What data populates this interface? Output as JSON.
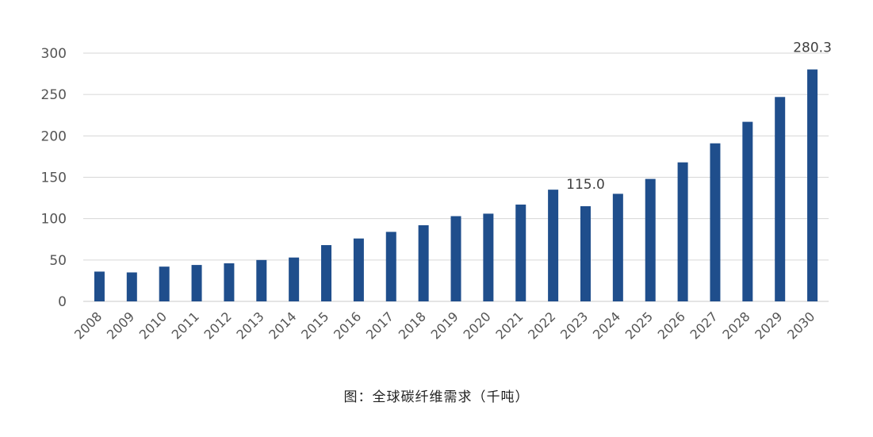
{
  "chart_data": {
    "type": "bar",
    "title": "",
    "xlabel": "",
    "ylabel": "",
    "categories": [
      "2008",
      "2009",
      "2010",
      "2011",
      "2012",
      "2013",
      "2014",
      "2015",
      "2016",
      "2017",
      "2018",
      "2019",
      "2020",
      "2021",
      "2022",
      "2023",
      "2024",
      "2025",
      "2026",
      "2027",
      "2028",
      "2029",
      "2030"
    ],
    "values": [
      36,
      35,
      42,
      44,
      46,
      50,
      53,
      68,
      76,
      84,
      92,
      103,
      106,
      117,
      135,
      115.0,
      130,
      148,
      168,
      191,
      217,
      247,
      280.3
    ],
    "ylim": [
      0,
      300
    ],
    "yticks": [
      0,
      50,
      100,
      150,
      200,
      250,
      300
    ],
    "grid": true,
    "data_labels": [
      {
        "category": "2023",
        "text": "115.0"
      },
      {
        "category": "2030",
        "text": "280.3"
      }
    ],
    "bar_color": "#1f4e8c"
  },
  "caption": "图：全球碳纤维需求（千吨）"
}
